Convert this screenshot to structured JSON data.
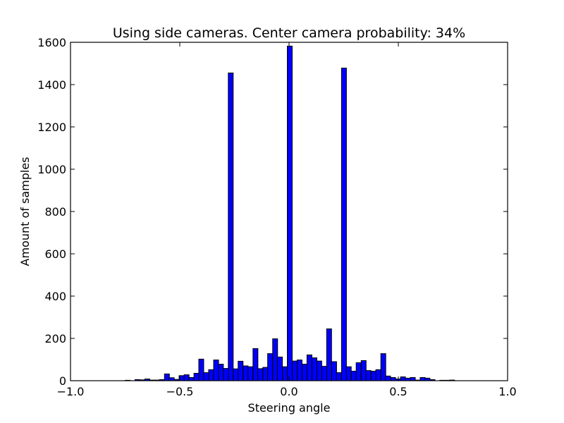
{
  "chart_data": {
    "type": "bar",
    "title": "Using side cameras. Center camera probability: 34%",
    "xlabel": "Steering angle",
    "ylabel": "Amount of samples",
    "xlim": [
      -1.0,
      1.0
    ],
    "ylim": [
      0,
      1600
    ],
    "bin_width": 0.0225,
    "x_ticks": [
      -1.0,
      -0.5,
      0.0,
      0.5,
      1.0
    ],
    "x_tick_labels": [
      "−1.0",
      "−0.5",
      "0.0",
      "0.5",
      "1.0"
    ],
    "y_ticks": [
      0,
      200,
      400,
      600,
      800,
      1000,
      1200,
      1400,
      1600
    ],
    "y_tick_labels": [
      "0",
      "200",
      "400",
      "600",
      "800",
      "1000",
      "1200",
      "1400",
      "1600"
    ],
    "grid": false,
    "bar_color": "#0000ff",
    "edge_color": "#000000",
    "bins": [
      {
        "x": -0.75,
        "value": 2
      },
      {
        "x": -0.705,
        "value": 5
      },
      {
        "x": -0.683,
        "value": 4
      },
      {
        "x": -0.66,
        "value": 8
      },
      {
        "x": -0.638,
        "value": 3
      },
      {
        "x": -0.615,
        "value": 3
      },
      {
        "x": -0.593,
        "value": 5
      },
      {
        "x": -0.57,
        "value": 32
      },
      {
        "x": -0.548,
        "value": 14
      },
      {
        "x": -0.525,
        "value": 6
      },
      {
        "x": -0.503,
        "value": 24
      },
      {
        "x": -0.48,
        "value": 28
      },
      {
        "x": -0.458,
        "value": 15
      },
      {
        "x": -0.435,
        "value": 35
      },
      {
        "x": -0.413,
        "value": 102
      },
      {
        "x": -0.39,
        "value": 38
      },
      {
        "x": -0.368,
        "value": 52
      },
      {
        "x": -0.345,
        "value": 98
      },
      {
        "x": -0.323,
        "value": 78
      },
      {
        "x": -0.3,
        "value": 58
      },
      {
        "x": -0.278,
        "value": 1455
      },
      {
        "x": -0.255,
        "value": 56
      },
      {
        "x": -0.233,
        "value": 92
      },
      {
        "x": -0.21,
        "value": 70
      },
      {
        "x": -0.188,
        "value": 66
      },
      {
        "x": -0.165,
        "value": 152
      },
      {
        "x": -0.143,
        "value": 57
      },
      {
        "x": -0.12,
        "value": 63
      },
      {
        "x": -0.098,
        "value": 128
      },
      {
        "x": -0.075,
        "value": 198
      },
      {
        "x": -0.053,
        "value": 112
      },
      {
        "x": -0.03,
        "value": 66
      },
      {
        "x": -0.008,
        "value": 1582
      },
      {
        "x": 0.015,
        "value": 93
      },
      {
        "x": 0.037,
        "value": 98
      },
      {
        "x": 0.06,
        "value": 78
      },
      {
        "x": 0.082,
        "value": 122
      },
      {
        "x": 0.105,
        "value": 108
      },
      {
        "x": 0.127,
        "value": 93
      },
      {
        "x": 0.15,
        "value": 68
      },
      {
        "x": 0.172,
        "value": 245
      },
      {
        "x": 0.195,
        "value": 90
      },
      {
        "x": 0.217,
        "value": 38
      },
      {
        "x": 0.24,
        "value": 1478
      },
      {
        "x": 0.262,
        "value": 66
      },
      {
        "x": 0.285,
        "value": 45
      },
      {
        "x": 0.307,
        "value": 85
      },
      {
        "x": 0.33,
        "value": 95
      },
      {
        "x": 0.352,
        "value": 48
      },
      {
        "x": 0.375,
        "value": 45
      },
      {
        "x": 0.397,
        "value": 52
      },
      {
        "x": 0.42,
        "value": 128
      },
      {
        "x": 0.442,
        "value": 22
      },
      {
        "x": 0.465,
        "value": 15
      },
      {
        "x": 0.487,
        "value": 8
      },
      {
        "x": 0.51,
        "value": 18
      },
      {
        "x": 0.532,
        "value": 12
      },
      {
        "x": 0.555,
        "value": 15
      },
      {
        "x": 0.577,
        "value": 3
      },
      {
        "x": 0.6,
        "value": 15
      },
      {
        "x": 0.622,
        "value": 12
      },
      {
        "x": 0.645,
        "value": 5
      },
      {
        "x": 0.69,
        "value": 2
      },
      {
        "x": 0.712,
        "value": 2
      },
      {
        "x": 0.735,
        "value": 3
      }
    ]
  }
}
